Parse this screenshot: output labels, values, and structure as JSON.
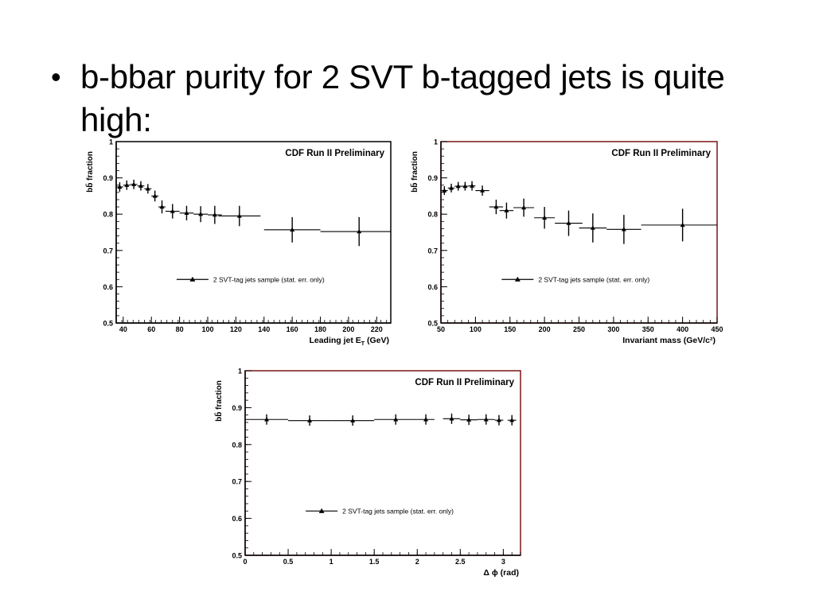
{
  "slide": {
    "bullet_symbol": "•",
    "bullet_text": "b-bbar purity for 2 SVT b-tagged jets is quite high:"
  },
  "chart_data": [
    {
      "type": "scatter",
      "title": "CDF Run II Preliminary",
      "xlabel": "Leading jet E",
      "xlabel_sub": "T",
      "xlabel_unit": "(GeV)",
      "ylabel": "bb̄ fraction",
      "xlim": [
        35,
        230
      ],
      "ylim": [
        0.5,
        1.0
      ],
      "xticks": [
        "40",
        "60",
        "80",
        "100",
        "120",
        "140",
        "160",
        "180",
        "200",
        "220"
      ],
      "yticks": [
        "0.5",
        "0.6",
        "0.7",
        "0.8",
        "0.9",
        "1"
      ],
      "legend": "2 SVT-tag jets sample (stat. err. only)",
      "frame_color": "#000000",
      "series": [
        {
          "x": [
            37.5,
            42.5,
            47.5,
            52.5,
            57.5,
            62.5,
            67.5,
            75,
            85,
            95,
            105,
            122.5,
            160,
            207.5
          ],
          "y": [
            0.875,
            0.88,
            0.882,
            0.878,
            0.87,
            0.85,
            0.82,
            0.808,
            0.803,
            0.8,
            0.798,
            0.795,
            0.757,
            0.752
          ],
          "yerr": [
            0.013,
            0.013,
            0.013,
            0.013,
            0.013,
            0.015,
            0.018,
            0.02,
            0.02,
            0.022,
            0.025,
            0.028,
            0.035,
            0.04
          ],
          "xerr": [
            2.5,
            2.5,
            2.5,
            2.5,
            2.5,
            2.5,
            2.5,
            5,
            5,
            5,
            5,
            15,
            20,
            27.5
          ]
        }
      ]
    },
    {
      "type": "scatter",
      "title": "CDF Run II Preliminary",
      "xlabel": "Invariant mass",
      "xlabel_unit": "(GeV/c²)",
      "ylabel": "bb̄ fraction",
      "xlim": [
        50,
        450
      ],
      "ylim": [
        0.5,
        1.0
      ],
      "xticks": [
        "50",
        "100",
        "150",
        "200",
        "250",
        "300",
        "350",
        "400",
        "450"
      ],
      "yticks": [
        "0.5",
        "0.6",
        "0.7",
        "0.8",
        "0.9",
        "1"
      ],
      "legend": "2 SVT-tag jets sample (stat. err. only)",
      "frame_color": "#7a1515",
      "series": [
        {
          "x": [
            55,
            65,
            75,
            85,
            95,
            110,
            130,
            145,
            170,
            200,
            235,
            270,
            315,
            400
          ],
          "y": [
            0.865,
            0.872,
            0.877,
            0.877,
            0.878,
            0.865,
            0.82,
            0.81,
            0.818,
            0.79,
            0.775,
            0.762,
            0.758,
            0.77
          ],
          "yerr": [
            0.012,
            0.012,
            0.012,
            0.012,
            0.013,
            0.014,
            0.02,
            0.022,
            0.025,
            0.03,
            0.035,
            0.04,
            0.04,
            0.045
          ],
          "xerr": [
            5,
            5,
            5,
            5,
            5,
            10,
            10,
            10,
            15,
            15,
            20,
            20,
            25,
            60
          ]
        }
      ]
    },
    {
      "type": "scatter",
      "title": "CDF Run II Preliminary",
      "xlabel": "Δ ϕ (rad)",
      "ylabel": "bb̄ fraction",
      "xlim": [
        0,
        3.2
      ],
      "ylim": [
        0.5,
        1.0
      ],
      "xticks": [
        "0",
        "0.5",
        "1",
        "1.5",
        "2",
        "2.5",
        "3"
      ],
      "yticks": [
        "0.5",
        "0.6",
        "0.7",
        "0.8",
        "0.9",
        "1"
      ],
      "legend": "2 SVT-tag jets sample (stat. err. only)",
      "frame_color": "#7a1515",
      "series": [
        {
          "x": [
            0.25,
            0.75,
            1.25,
            1.75,
            2.1,
            2.4,
            2.6,
            2.8,
            2.95,
            3.1
          ],
          "y": [
            0.868,
            0.865,
            0.865,
            0.868,
            0.868,
            0.87,
            0.867,
            0.868,
            0.866,
            0.866
          ],
          "yerr": [
            0.014,
            0.014,
            0.014,
            0.014,
            0.014,
            0.014,
            0.014,
            0.014,
            0.014,
            0.014
          ],
          "xerr": [
            0.25,
            0.25,
            0.25,
            0.25,
            0.1,
            0.1,
            0.1,
            0.1,
            0.05,
            0.05
          ]
        }
      ]
    }
  ]
}
